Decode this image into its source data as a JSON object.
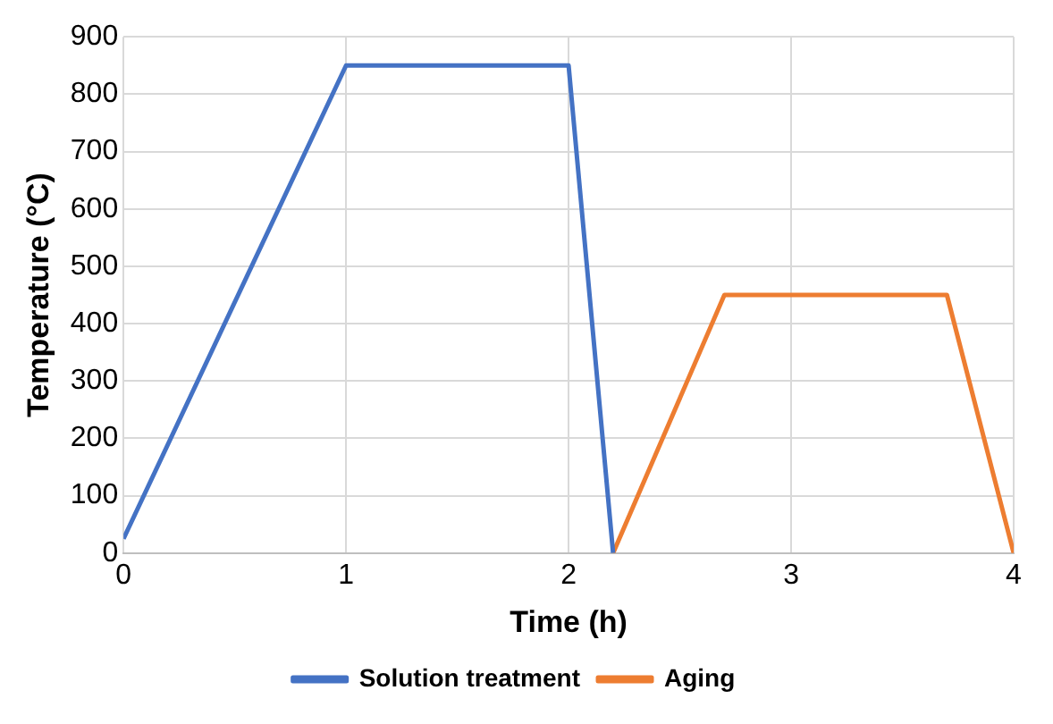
{
  "chart_data": {
    "type": "line",
    "xlabel": "Time (h)",
    "ylabel": "Temperature (°C)",
    "series": [
      {
        "name": "Solution treatment",
        "color": "#4472c4",
        "x": [
          0,
          1,
          2,
          2.2
        ],
        "values": [
          25,
          850,
          850,
          0
        ]
      },
      {
        "name": "Aging",
        "color": "#ed7d31",
        "x": [
          2.2,
          2.7,
          3.7,
          4
        ],
        "values": [
          0,
          450,
          450,
          0
        ]
      }
    ],
    "xlim": [
      0,
      4
    ],
    "xticks": [
      0,
      1,
      2,
      3,
      4
    ],
    "ylim": [
      0,
      900
    ],
    "yticks": [
      0,
      100,
      200,
      300,
      400,
      500,
      600,
      700,
      800,
      900
    ],
    "grid": true,
    "legend": "bottom",
    "marker": "none",
    "line_style": "solid"
  }
}
